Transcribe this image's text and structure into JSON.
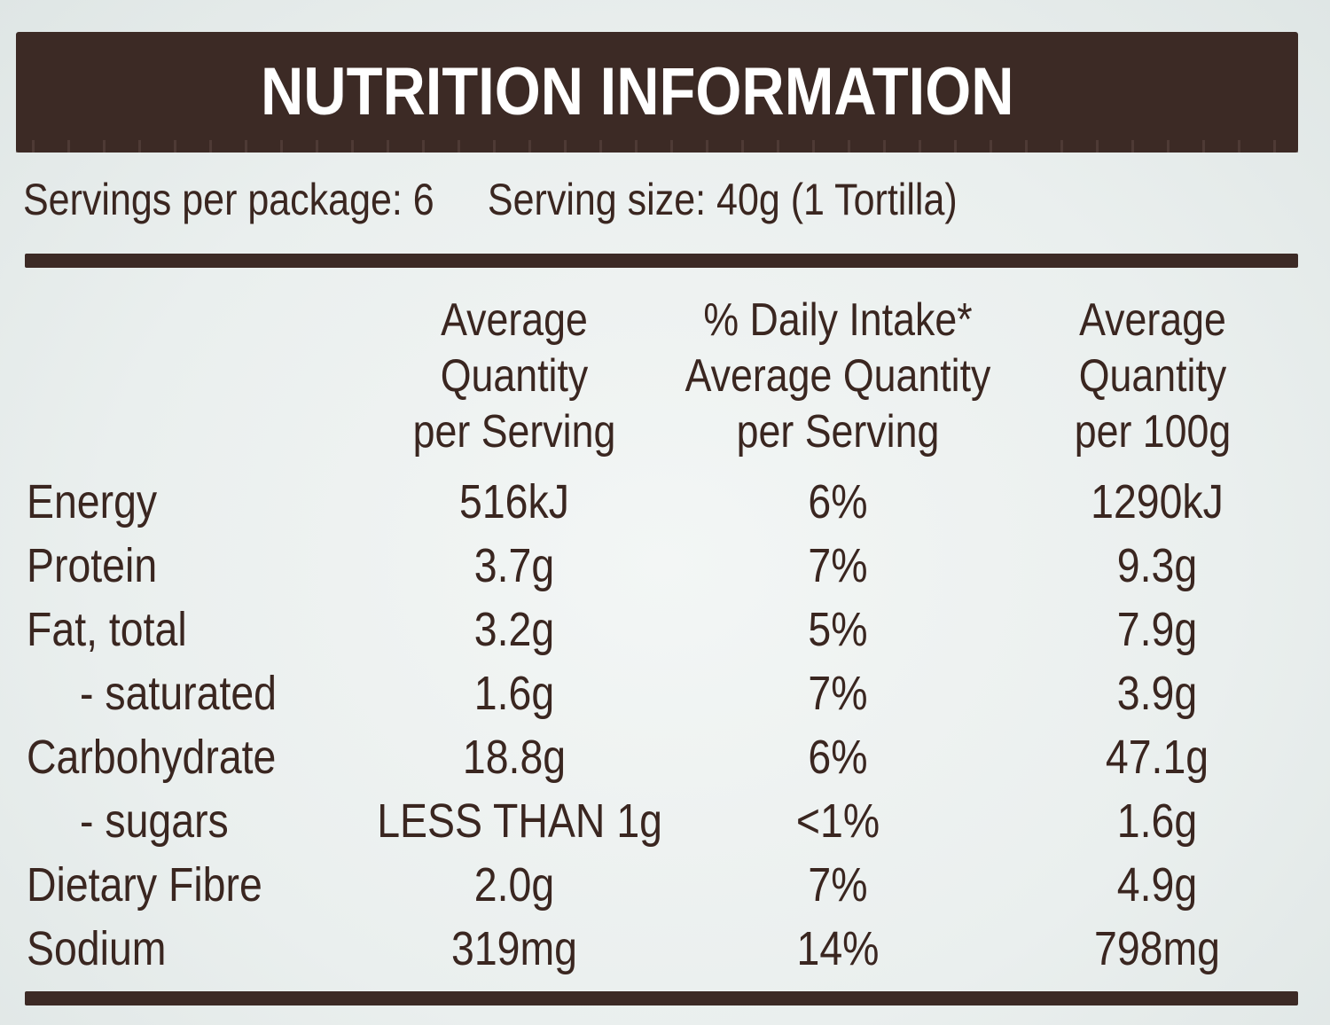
{
  "title": "NUTRITION INFORMATION",
  "servings_per_package": "Servings per package: 6",
  "serving_size": "Serving size: 40g (1 Tortilla)",
  "columns": {
    "per_serving": [
      "Average",
      "Quantity",
      "per Serving"
    ],
    "daily_intake": [
      "% Daily Intake*",
      "Average Quantity",
      "per Serving"
    ],
    "per_100g": [
      "Average",
      "Quantity",
      "per 100g"
    ]
  },
  "rows": [
    {
      "label": "Energy",
      "per_serving": "516kJ",
      "daily_intake": "6%",
      "per_100g": "1290kJ"
    },
    {
      "label": "Protein",
      "per_serving": "3.7g",
      "daily_intake": "7%",
      "per_100g": "9.3g"
    },
    {
      "label": "Fat, total",
      "per_serving": "3.2g",
      "daily_intake": "5%",
      "per_100g": "7.9g"
    },
    {
      "label": "- saturated",
      "per_serving": "1.6g",
      "daily_intake": "7%",
      "per_100g": "3.9g"
    },
    {
      "label": "Carbohydrate",
      "per_serving": "18.8g",
      "daily_intake": "6%",
      "per_100g": "47.1g"
    },
    {
      "label": "- sugars",
      "per_serving": "LESS THAN 1g",
      "daily_intake": "<1%",
      "per_100g": "1.6g"
    },
    {
      "label": "Dietary Fibre",
      "per_serving": "2.0g",
      "daily_intake": "7%",
      "per_100g": "4.9g"
    },
    {
      "label": "Sodium",
      "per_serving": "319mg",
      "daily_intake": "14%",
      "per_100g": "798mg"
    }
  ],
  "colors": {
    "bar": "#3c2a25",
    "text": "#3a2620",
    "background": "#ecf0ef"
  }
}
